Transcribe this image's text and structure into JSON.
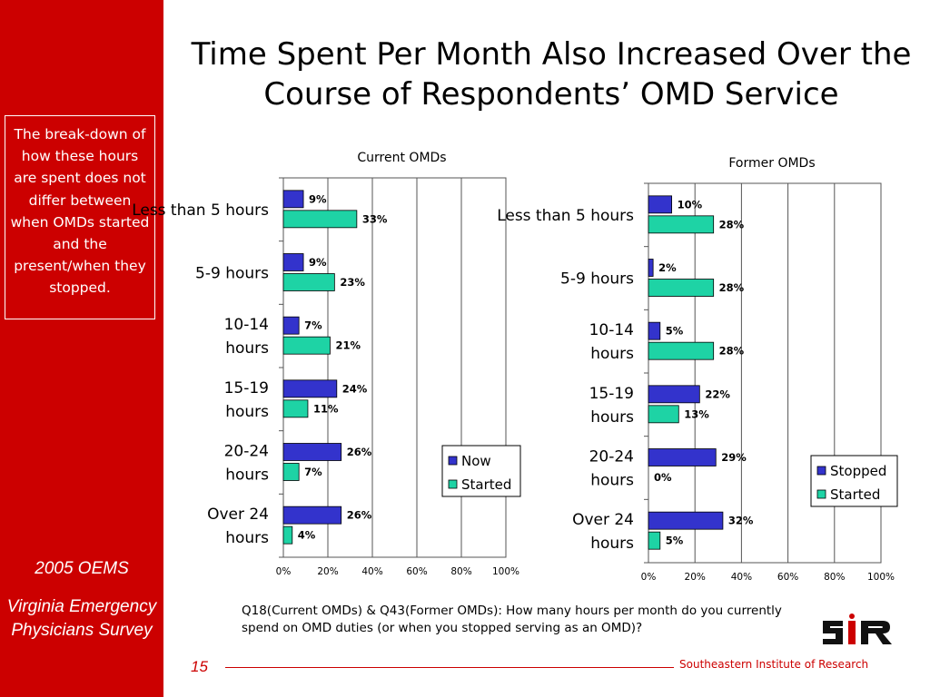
{
  "slide": {
    "title": "Time Spent Per Month Also Increased Over the Course of Respondents’ OMD Service",
    "callout": "The break-down of how these hours are spent does not differ between when OMDs started and the present/when they stopped.",
    "sidebar_year": "2005 OEMS",
    "sidebar_survey": "Virginia Emergency Physicians Survey",
    "footnote": "Q18(Current OMDs) & Q43(Former OMDs): How many hours per month do you currently spend on OMD duties (or when you stopped serving as an OMD)?",
    "page_number": "15",
    "footer_org": "Southeastern Institute of Research",
    "logo_text": "SIR",
    "colors": {
      "sidebar": "#cc0000",
      "series_primary": "#3333cc",
      "series_started": "#1ed3a5"
    }
  },
  "chart_data": [
    {
      "type": "bar",
      "orientation": "horizontal",
      "title": "Current OMDs",
      "categories": [
        "Less than 5 hours",
        "5-9 hours",
        "10-14 hours",
        "15-19 hours",
        "20-24 hours",
        "Over 24 hours"
      ],
      "series": [
        {
          "name": "Now",
          "values": [
            9,
            9,
            7,
            24,
            26,
            26
          ],
          "labels": [
            "9%",
            "9%",
            "7%",
            "24%",
            "26%",
            "26%"
          ],
          "color": "#3333cc"
        },
        {
          "name": "Started",
          "values": [
            33,
            23,
            21,
            11,
            7,
            4
          ],
          "labels": [
            "33%",
            "23%",
            "21%",
            "11%",
            "7%",
            "4%"
          ],
          "color": "#1ed3a5"
        }
      ],
      "xlim": [
        0,
        100
      ],
      "xticks": [
        "0%",
        "20%",
        "40%",
        "60%",
        "80%",
        "100%"
      ],
      "grid": true,
      "legend": "bottom-right"
    },
    {
      "type": "bar",
      "orientation": "horizontal",
      "title": "Former OMDs",
      "categories": [
        "Less than 5 hours",
        "5-9 hours",
        "10-14 hours",
        "15-19 hours",
        "20-24 hours",
        "Over 24 hours"
      ],
      "series": [
        {
          "name": "Stopped",
          "values": [
            10,
            2,
            5,
            22,
            29,
            32
          ],
          "labels": [
            "10%",
            "2%",
            "5%",
            "22%",
            "29%",
            "32%"
          ],
          "color": "#3333cc"
        },
        {
          "name": "Started",
          "values": [
            28,
            28,
            28,
            13,
            0,
            5
          ],
          "labels": [
            "28%",
            "28%",
            "28%",
            "13%",
            "0%",
            "5%"
          ],
          "color": "#1ed3a5"
        }
      ],
      "xlim": [
        0,
        100
      ],
      "xticks": [
        "0%",
        "20%",
        "40%",
        "60%",
        "80%",
        "100%"
      ],
      "grid": true,
      "legend": "bottom-right"
    }
  ]
}
